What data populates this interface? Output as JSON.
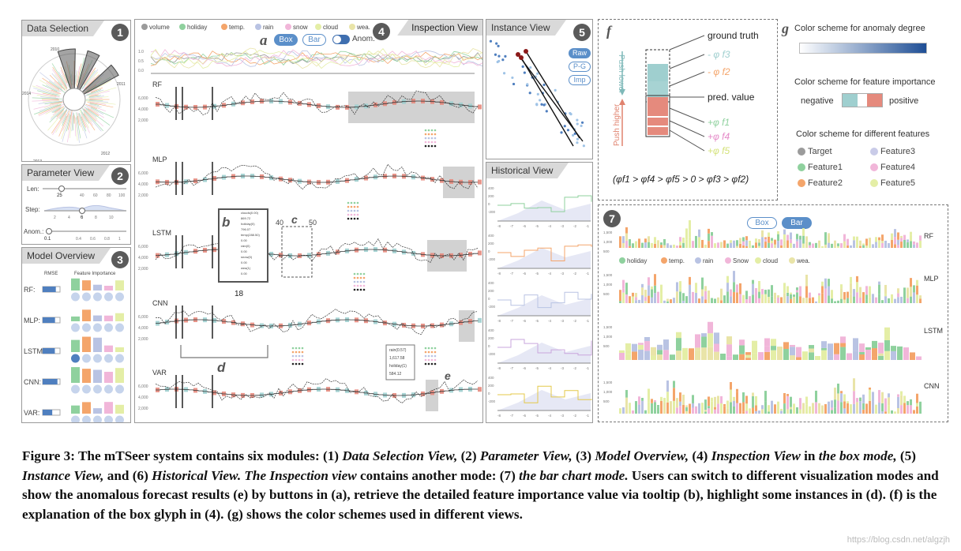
{
  "panels": {
    "data_selection": {
      "title": "Data Selection",
      "num": "1"
    },
    "parameter": {
      "title": "Parameter View",
      "num": "2"
    },
    "model_overview": {
      "title": "Model Overview",
      "num": "3"
    },
    "inspection": {
      "title": "Inspection View",
      "num": "4"
    },
    "instance": {
      "title": "Instance View",
      "num": "5"
    },
    "historical": {
      "title": "Historical View"
    },
    "bar_mode": {
      "num": "7"
    }
  },
  "data_selection": {
    "years": [
      "2010",
      "2011",
      "2012",
      "2013",
      "2014"
    ]
  },
  "parameter": {
    "len_label": "Len:",
    "len_value": "25",
    "len_ticks": [
      "20",
      "40",
      "60",
      "80",
      "100"
    ],
    "step_label": "Step:",
    "step_value": "6",
    "step_ticks": [
      "2",
      "4",
      "8",
      "10"
    ],
    "anom_label": "Anom.:",
    "anom_value": "0.1",
    "anom_ticks": [
      "0.4",
      "0.6",
      "0.8",
      "1"
    ]
  },
  "model_overview": {
    "rmse_header": "RMSE",
    "fi_header": "Feature Importance",
    "models": [
      "RF:",
      "MLP:",
      "LSTM:",
      "CNN:",
      "VAR:"
    ]
  },
  "inspection": {
    "legend": [
      "volume",
      "holiday",
      "temp.",
      "rain",
      "snow",
      "cloud",
      "wea."
    ],
    "legend_colors": [
      "#9b9b9b",
      "#8fd19e",
      "#f4a56b",
      "#b9c3e3",
      "#f1b6d9",
      "#e4eea6",
      "#e9e4a8"
    ],
    "label_a": "a",
    "btn_box": "Box",
    "btn_bar": "Bar",
    "toggle_anom": "Anom.",
    "models": [
      "RF",
      "MLP",
      "LSTM",
      "CNN",
      "VAR"
    ],
    "yticks": [
      "6,000",
      "4,000",
      "2,000"
    ],
    "label_b": "b",
    "label_c": "c",
    "label_c_left": "40",
    "label_c_right": "50",
    "label_18": "18",
    "label_d": "d",
    "label_e": "e",
    "tooltip_b": [
      "clouds(0.00)",
      "869.72",
      "holiday(0)",
      "796.07",
      "temp(288.50)",
      "0.00",
      "rain(0)",
      "0.00",
      "snow(0)",
      "0.00",
      "wea(1)",
      "0.00"
    ],
    "tooltip_e": [
      "rain(0.57)",
      "1,617.58",
      "holiday(1)",
      "584.12"
    ],
    "line_ticks": [
      "1.0",
      "0.5",
      "0.0"
    ]
  },
  "instance": {
    "btn_raw": "Raw",
    "btn_pg": "P-G",
    "btn_imp": "Imp"
  },
  "historical": {
    "yticks": [
      "400",
      "200",
      "0",
      "-200"
    ],
    "xticks": [
      "-8",
      "-7",
      "-6",
      "-5",
      "-4",
      "-3",
      "-2",
      "-1"
    ]
  },
  "glyph_f": {
    "label": "f",
    "ground_truth": "ground truth",
    "pred_value": "pred. value",
    "phi_f3": "- φ f3",
    "phi_f2": "- φ f2",
    "phi_f1": "+φ f1",
    "phi_f4": "+φ f4",
    "phi_f5": "+φ f5",
    "push_lower": "Push lower",
    "push_higher": "Push higher",
    "inequality": "(φf1 > φf4 > φf5 > 0 > φf3 > φf2)"
  },
  "colors_g": {
    "label": "g",
    "anomaly_title": "Color scheme for anomaly degree",
    "importance_title": "Color scheme for feature importance",
    "negative": "negative",
    "positive": "positive",
    "features_title": "Color scheme for different features",
    "features": [
      "Target",
      "Feature3",
      "Feature1",
      "Feature4",
      "Feature2",
      "Feature5"
    ],
    "feature_colors": [
      "#9b9b9b",
      "#c9cbe8",
      "#8fd19e",
      "#f1b6d9",
      "#f4a56b",
      "#e4eea6"
    ]
  },
  "bar_mode": {
    "btn_box": "Box",
    "btn_bar": "Bar",
    "models": [
      "RF",
      "MLP",
      "LSTM",
      "CNN"
    ],
    "legend": [
      "holiday",
      "temp.",
      "rain",
      "Snow",
      "cloud",
      "wea."
    ],
    "legend_colors": [
      "#8fd19e",
      "#f4a56b",
      "#b9c3e3",
      "#f1b6d9",
      "#e4eea6",
      "#e9e4a8"
    ],
    "yticks": [
      "1,500",
      "1,000",
      "500"
    ]
  },
  "caption": {
    "p1": "Figure 3: The mTSeer system contains six modules: (1) ",
    "i1": "Data Selection View,",
    "p2": " (2) ",
    "i2": "Parameter View,",
    "p3": " (3) ",
    "i3": "Model Overview,",
    "p4": " (4) ",
    "i4": "Inspection View",
    "p5": " in ",
    "i5": "the box mode,",
    "p6": " (5) ",
    "i6": "Instance View,",
    "p7": " and (6) ",
    "i7": "Historical View. The Inspection view",
    "p8": " contains another mode: (7) ",
    "i8": "the bar chart mode.",
    "p9": " Users can switch to different visualization modes and show the anomalous forecast results (e) by buttons in (a), retrieve the detailed feature importance value via tooltip (b), highlight some instances in (d). (f) is the explanation of the box glyph in (4). (g) shows the color schemes used in different views."
  },
  "watermark": "https://blog.csdn.net/algzjh"
}
